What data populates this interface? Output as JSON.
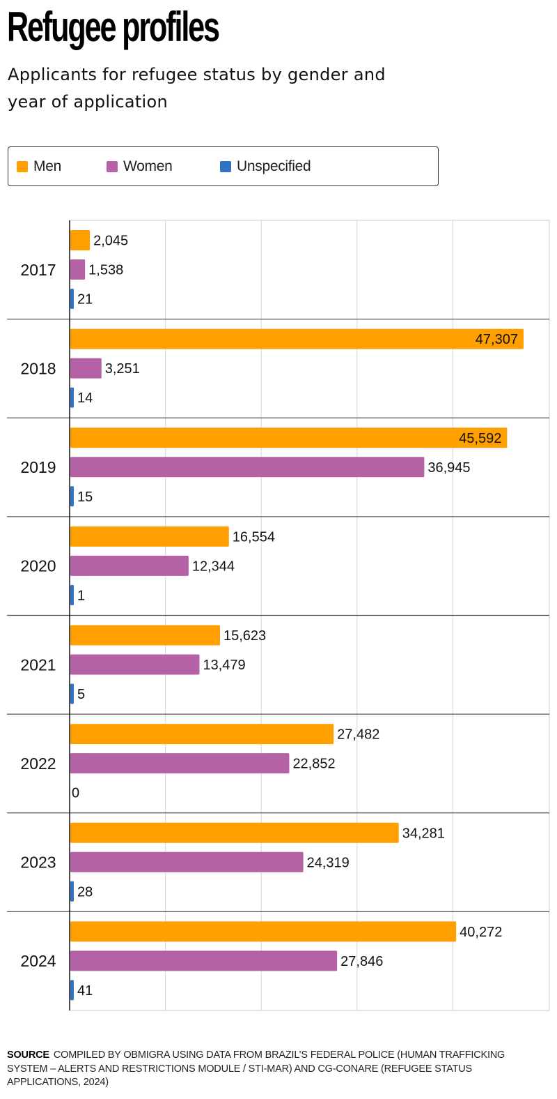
{
  "header": {
    "title": "Refugee profiles",
    "subtitle": "Applicants for refugee status by gender and year of application"
  },
  "legend": [
    {
      "label": "Men",
      "color": "#FF9F00"
    },
    {
      "label": "Women",
      "color": "#B462A5"
    },
    {
      "label": "Unspecified",
      "color": "#2F73C2"
    }
  ],
  "chart_data": {
    "type": "bar",
    "orientation": "horizontal",
    "title": "Refugee profiles",
    "subtitle": "Applicants for refugee status by gender and year of application",
    "xlabel": "",
    "ylabel": "",
    "xlim": [
      0,
      50000
    ],
    "grid": true,
    "legend_position": "top",
    "categories": [
      "2017",
      "2018",
      "2019",
      "2020",
      "2021",
      "2022",
      "2023",
      "2024"
    ],
    "series": [
      {
        "name": "Men",
        "color": "#FF9F00",
        "values": [
          2045,
          47307,
          45592,
          16554,
          15623,
          27482,
          34281,
          40272
        ],
        "labels": [
          "2,045",
          "47,307",
          "45,592",
          "16,554",
          "15,623",
          "27,482",
          "34,281",
          "40,272"
        ]
      },
      {
        "name": "Women",
        "color": "#B462A5",
        "values": [
          1538,
          3251,
          36945,
          12344,
          13479,
          22852,
          24319,
          27846
        ],
        "labels": [
          "1,538",
          "3,251",
          "36,945",
          "12,344",
          "13,479",
          "22,852",
          "24,319",
          "27,846"
        ]
      },
      {
        "name": "Unspecified",
        "color": "#2F73C2",
        "values": [
          21,
          14,
          15,
          1,
          5,
          0,
          28,
          41
        ],
        "labels": [
          "21",
          "14",
          "15",
          "1",
          "5",
          "0",
          "28",
          "41"
        ]
      }
    ]
  },
  "source": {
    "label": "SOURCE",
    "text": "COMPILED BY OBMIGRA USING DATA FROM BRAZIL’S FEDERAL POLICE (HUMAN TRAFFICKING SYSTEM – ALERTS AND RESTRICTIONS MODULE / STI-MAR) AND CG-CONARE (REFUGEE STATUS APPLICATIONS, 2024)"
  }
}
